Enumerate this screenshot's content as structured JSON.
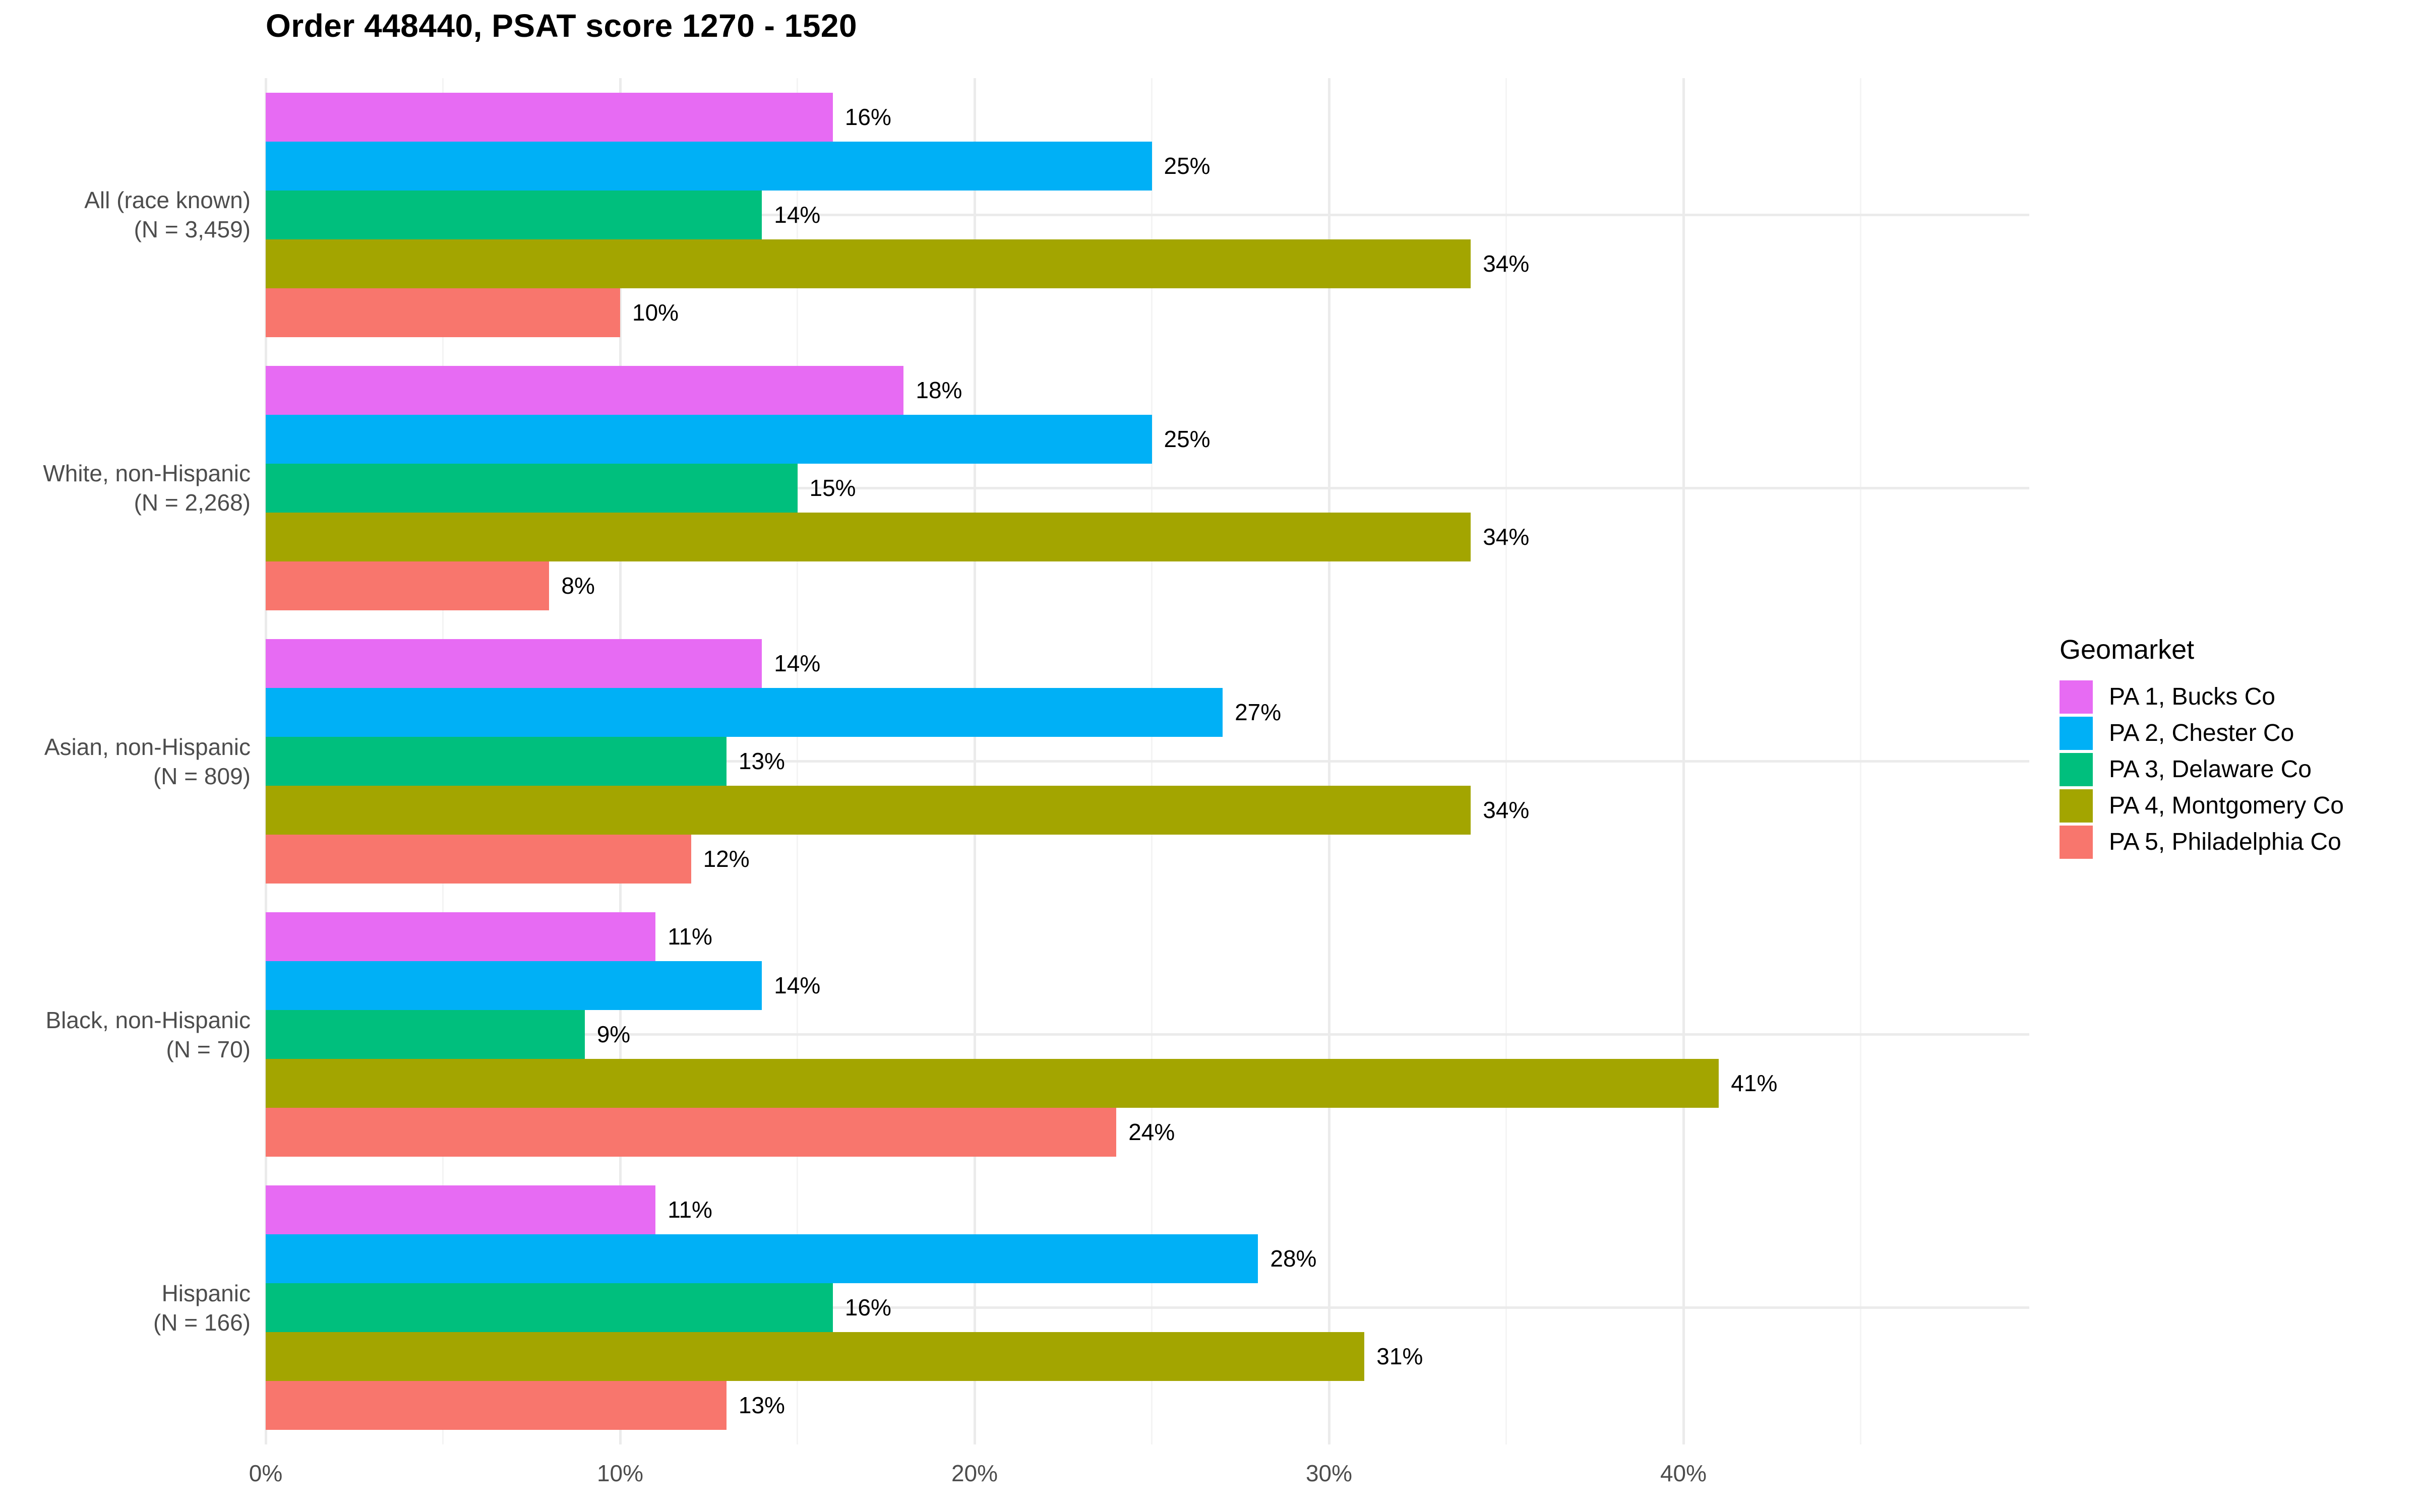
{
  "title": "Order 448440, PSAT score 1270 - 1520",
  "legend": {
    "title": "Geomarket",
    "items": [
      {
        "label": "PA 1, Bucks Co",
        "color": "#E76BF3"
      },
      {
        "label": "PA 2, Chester Co",
        "color": "#00B0F6"
      },
      {
        "label": "PA 3, Delaware Co",
        "color": "#00BF7D"
      },
      {
        "label": "PA 4, Montgomery Co",
        "color": "#A3A500"
      },
      {
        "label": "PA 5, Philadelphia Co",
        "color": "#F8766D"
      }
    ]
  },
  "x_axis": {
    "tick_values": [
      0,
      10,
      20,
      30,
      40
    ],
    "tick_labels": [
      "0%",
      "10%",
      "20%",
      "30%",
      "40%"
    ],
    "minor_tick_values": [
      5,
      15,
      25,
      35,
      45
    ]
  },
  "chart_data": {
    "type": "bar",
    "orientation": "horizontal",
    "title": "Order 448440, PSAT score 1270 - 1520",
    "xlabel": "",
    "ylabel": "",
    "xlim": [
      0,
      49.8
    ],
    "grid": true,
    "legend_position": "right",
    "value_label_suffix": "%",
    "categories": [
      "All (race known) (N = 3,459)",
      "White, non-Hispanic (N = 2,268)",
      "Asian, non-Hispanic (N = 809)",
      "Black, non-Hispanic (N = 70)",
      "Hispanic (N = 166)"
    ],
    "category_label_lines": [
      [
        "All (race known)",
        "(N = 3,459)"
      ],
      [
        "White, non-Hispanic",
        "(N = 2,268)"
      ],
      [
        "Asian, non-Hispanic",
        "(N = 809)"
      ],
      [
        "Black, non-Hispanic",
        "(N = 70)"
      ],
      [
        "Hispanic",
        "(N = 166)"
      ]
    ],
    "series": [
      {
        "name": "PA 1, Bucks Co",
        "color": "#E76BF3",
        "values": [
          16,
          18,
          14,
          11,
          11
        ]
      },
      {
        "name": "PA 2, Chester Co",
        "color": "#00B0F6",
        "values": [
          25,
          25,
          27,
          14,
          28
        ]
      },
      {
        "name": "PA 3, Delaware Co",
        "color": "#00BF7D",
        "values": [
          14,
          15,
          13,
          9,
          16
        ]
      },
      {
        "name": "PA 4, Montgomery Co",
        "color": "#A3A500",
        "values": [
          34,
          34,
          34,
          41,
          31
        ]
      },
      {
        "name": "PA 5, Philadelphia Co",
        "color": "#F8766D",
        "values": [
          10,
          8,
          12,
          24,
          13
        ]
      }
    ]
  }
}
